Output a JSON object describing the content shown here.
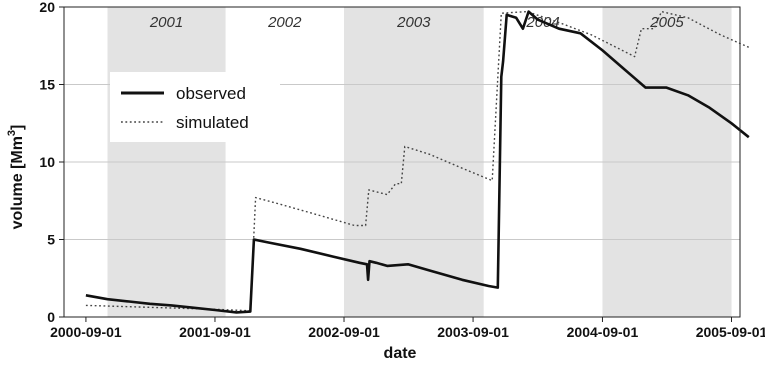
{
  "chart_data": {
    "type": "line",
    "xlabel": "date",
    "ylabel": "volume [Mm",
    "ylabel_sup": "3",
    "ylabel_close": "]",
    "xlim": [
      "2000-07-01",
      "2005-09-25"
    ],
    "ylim": [
      0,
      20
    ],
    "grid": true,
    "legend_position": "upper-left",
    "x_ticks": [
      "2000-09-01",
      "2001-09-01",
      "2002-09-01",
      "2003-09-01",
      "2004-09-01",
      "2005-09-01"
    ],
    "y_ticks": [
      0,
      5,
      10,
      15,
      20
    ],
    "shaded_periods": [
      {
        "label": "2001",
        "start": "2000-11-01",
        "end": "2001-10-01"
      },
      {
        "label": "2002",
        "start": null,
        "end": null
      },
      {
        "label": "2003",
        "start": "2002-09-01",
        "end": "2003-10-01"
      },
      {
        "label": "2004",
        "start": null,
        "end": null
      },
      {
        "label": "2005",
        "start": "2004-09-01",
        "end": "2005-09-01"
      }
    ],
    "series": [
      {
        "name": "observed",
        "style": "solid",
        "color": "#111111",
        "points": [
          [
            "2000-09-01",
            1.4
          ],
          [
            "2000-11-01",
            1.15
          ],
          [
            "2001-01-01",
            1.0
          ],
          [
            "2001-03-01",
            0.85
          ],
          [
            "2001-05-01",
            0.75
          ],
          [
            "2001-07-01",
            0.6
          ],
          [
            "2001-09-01",
            0.45
          ],
          [
            "2001-11-01",
            0.3
          ],
          [
            "2001-12-10",
            0.35
          ],
          [
            "2001-12-20",
            5.0
          ],
          [
            "2002-02-01",
            4.8
          ],
          [
            "2002-05-01",
            4.4
          ],
          [
            "2002-08-01",
            3.9
          ],
          [
            "2002-10-15",
            3.5
          ],
          [
            "2002-11-05",
            3.4
          ],
          [
            "2002-11-08",
            2.4
          ],
          [
            "2002-11-12",
            3.6
          ],
          [
            "2002-12-01",
            3.5
          ],
          [
            "2003-01-01",
            3.3
          ],
          [
            "2003-03-01",
            3.4
          ],
          [
            "2003-05-01",
            3.0
          ],
          [
            "2003-08-01",
            2.4
          ],
          [
            "2003-10-15",
            2.0
          ],
          [
            "2003-11-10",
            1.9
          ],
          [
            "2003-11-20",
            15.5
          ],
          [
            "2003-11-25",
            16.5
          ],
          [
            "2003-12-05",
            19.5
          ],
          [
            "2004-01-01",
            19.3
          ],
          [
            "2004-01-20",
            18.6
          ],
          [
            "2004-02-05",
            19.7
          ],
          [
            "2004-03-01",
            19.2
          ],
          [
            "2004-05-01",
            18.6
          ],
          [
            "2004-07-01",
            18.3
          ],
          [
            "2004-09-01",
            17.2
          ],
          [
            "2004-11-01",
            16.0
          ],
          [
            "2005-01-01",
            14.8
          ],
          [
            "2005-03-01",
            14.8
          ],
          [
            "2005-05-01",
            14.3
          ],
          [
            "2005-07-01",
            13.5
          ],
          [
            "2005-09-01",
            12.5
          ],
          [
            "2005-10-20",
            11.6
          ]
        ]
      },
      {
        "name": "simulated",
        "style": "dotted",
        "color": "#444444",
        "points": [
          [
            "2000-09-01",
            0.75
          ],
          [
            "2001-09-01",
            0.5
          ],
          [
            "2001-12-10",
            0.4
          ],
          [
            "2001-12-25",
            7.7
          ],
          [
            "2002-03-01",
            7.3
          ],
          [
            "2002-06-01",
            6.7
          ],
          [
            "2002-10-01",
            5.9
          ],
          [
            "2002-11-01",
            5.9
          ],
          [
            "2002-11-10",
            8.2
          ],
          [
            "2003-01-01",
            7.9
          ],
          [
            "2003-01-25",
            8.6
          ],
          [
            "2003-02-10",
            8.6
          ],
          [
            "2003-02-20",
            11.0
          ],
          [
            "2003-05-01",
            10.5
          ],
          [
            "2003-08-01",
            9.6
          ],
          [
            "2003-10-25",
            8.8
          ],
          [
            "2003-11-20",
            19.6
          ],
          [
            "2004-02-01",
            19.7
          ],
          [
            "2004-05-01",
            19.0
          ],
          [
            "2004-08-01",
            18.2
          ],
          [
            "2004-12-01",
            16.8
          ],
          [
            "2004-12-20",
            18.6
          ],
          [
            "2005-01-25",
            18.6
          ],
          [
            "2005-02-15",
            19.7
          ],
          [
            "2005-05-01",
            19.3
          ],
          [
            "2005-08-01",
            18.2
          ],
          [
            "2005-10-20",
            17.4
          ]
        ]
      }
    ]
  }
}
